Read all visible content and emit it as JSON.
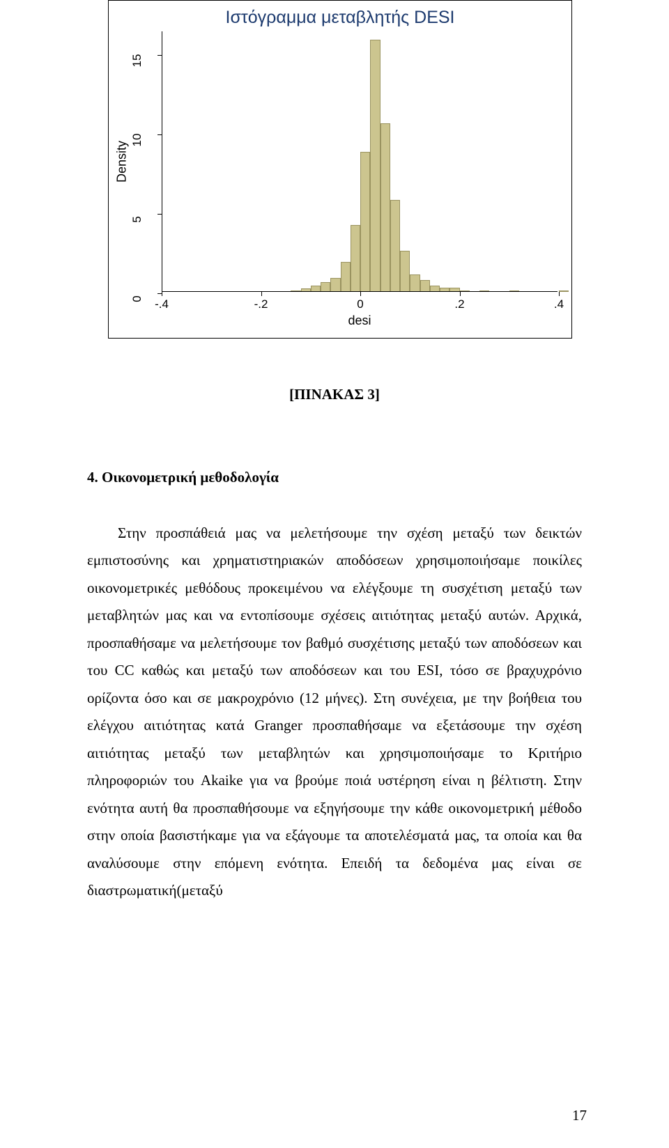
{
  "histogram": {
    "type": "histogram",
    "title": "Ιστόγραμμα μεταβλητής DESI",
    "title_color": "#1c3a6e",
    "title_fontsize": 25,
    "x_label": "desi",
    "y_label": "Density",
    "label_fontsize": 18,
    "xlim": [
      -0.4,
      0.4
    ],
    "ylim": [
      0,
      16.5
    ],
    "y_ticks": [
      0,
      5,
      10,
      15
    ],
    "x_ticks": [
      -0.4,
      -0.2,
      0,
      0.2,
      0.4
    ],
    "x_tick_labels": [
      "-.4",
      "-.2",
      "0",
      ".2",
      ".4"
    ],
    "bar_color": "#ccc58f",
    "bar_border_color": "#9a9360",
    "background_color": "#ffffff",
    "border_color": "#000000",
    "tick_fontsize": 17,
    "bins": [
      {
        "x": -0.14,
        "h": 0.1
      },
      {
        "x": -0.12,
        "h": 0.2
      },
      {
        "x": -0.1,
        "h": 0.4
      },
      {
        "x": -0.08,
        "h": 0.6
      },
      {
        "x": -0.06,
        "h": 0.9
      },
      {
        "x": -0.04,
        "h": 1.9
      },
      {
        "x": -0.02,
        "h": 4.2
      },
      {
        "x": 0.0,
        "h": 8.8
      },
      {
        "x": 0.02,
        "h": 15.9
      },
      {
        "x": 0.04,
        "h": 10.6
      },
      {
        "x": 0.06,
        "h": 5.8
      },
      {
        "x": 0.08,
        "h": 2.6
      },
      {
        "x": 0.1,
        "h": 1.1
      },
      {
        "x": 0.12,
        "h": 0.75
      },
      {
        "x": 0.14,
        "h": 0.4
      },
      {
        "x": 0.16,
        "h": 0.25
      },
      {
        "x": 0.18,
        "h": 0.25
      },
      {
        "x": 0.2,
        "h": 0.1
      },
      {
        "x": 0.24,
        "h": 0.08
      },
      {
        "x": 0.3,
        "h": 0.06
      },
      {
        "x": 0.4,
        "h": 0.06
      }
    ],
    "bin_width": 0.02
  },
  "caption": "[ΠΙΝΑΚΑΣ 3]",
  "section": {
    "heading": "4. Οικονομετρική μεθοδολογία",
    "paragraph": "Στην προσπάθειά μας να μελετήσουμε την σχέση μεταξύ των δεικτών εμπιστοσύνης και χρηματιστηριακών αποδόσεων χρησιμοποιήσαμε ποικίλες οικονομετρικές μεθόδους προκειμένου να ελέγξουμε τη συσχέτιση μεταξύ των μεταβλητών μας και να εντοπίσουμε σχέσεις αιτιότητας μεταξύ αυτών. Αρχικά, προσπαθήσαμε να μελετήσουμε τον βαθμό συσχέτισης μεταξύ των αποδόσεων και του CC καθώς και μεταξύ των αποδόσεων και του ESI, τόσο σε βραχυχρόνιο ορίζοντα όσο και σε μακροχρόνιο (12 μήνες). Στη συνέχεια, με την βοήθεια του ελέγχου αιτιότητας κατά Granger προσπαθήσαμε να εξετάσουμε την σχέση αιτιότητας μεταξύ των μεταβλητών και χρησιμοποιήσαμε το Κριτήριο πληροφοριών του Akaike για να βρούμε ποιά υστέρηση είναι η βέλτιστη. Στην ενότητα αυτή θα προσπαθήσουμε να εξηγήσουμε την κάθε οικονομετρική μέθοδο στην οποία βασιστήκαμε για να εξάγουμε τα αποτελέσματά μας, τα οποία και θα αναλύσουμε στην επόμενη ενότητα. Επειδή τα δεδομένα μας είναι σε διαστρωματική(μεταξύ"
  },
  "page_number": "17"
}
